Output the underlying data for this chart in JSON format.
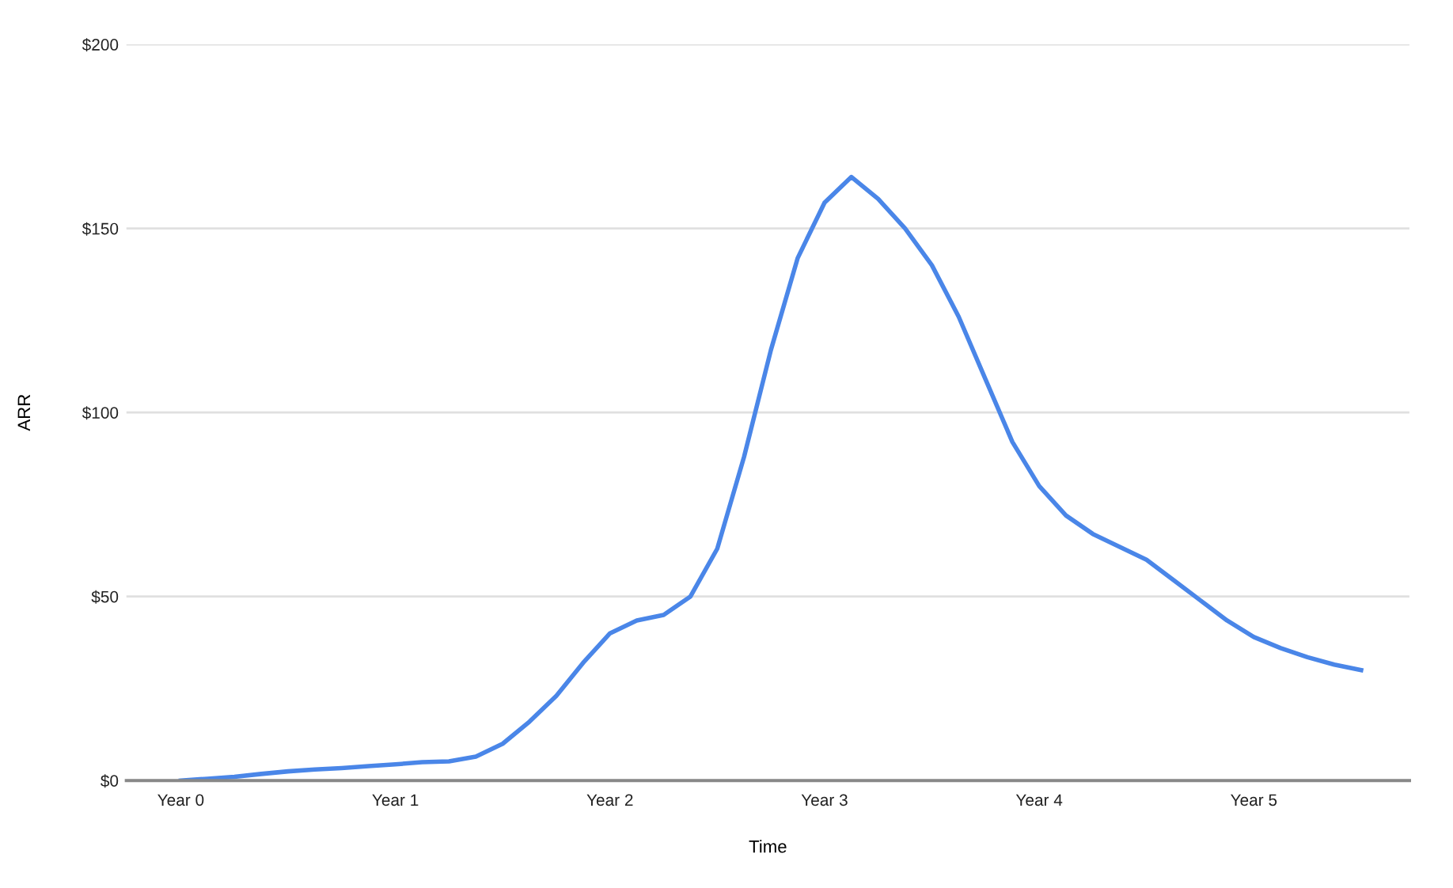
{
  "chart_data": {
    "type": "line",
    "xlabel": "Time",
    "ylabel": "ARR",
    "categories": [
      "Year 0",
      null,
      null,
      null,
      null,
      null,
      null,
      null,
      "Year 1",
      null,
      null,
      null,
      null,
      null,
      null,
      null,
      "Year 2",
      null,
      null,
      null,
      null,
      null,
      null,
      null,
      "Year 3",
      null,
      null,
      null,
      null,
      null,
      null,
      null,
      "Year 4",
      null,
      null,
      null,
      null,
      null,
      null,
      null,
      "Year 5",
      null,
      null,
      null,
      null
    ],
    "series": [
      {
        "color": "#4a86e8",
        "values": [
          0,
          0.5,
          1,
          1.8,
          2.5,
          3,
          3.4,
          3.9,
          4.4,
          5,
          5.2,
          6.5,
          10,
          16,
          23,
          32,
          40,
          43.5,
          45,
          50,
          63,
          88,
          117,
          142,
          157,
          164,
          158,
          150,
          140,
          126,
          109,
          92,
          80,
          72,
          67,
          63.5,
          60,
          54.5,
          49,
          43.5,
          39,
          36,
          33.5,
          31.5,
          30
        ]
      }
    ],
    "ylim": [
      0,
      200
    ],
    "yticks": [
      {
        "value": 0,
        "label": "$0"
      },
      {
        "value": 50,
        "label": "$50"
      },
      {
        "value": 100,
        "label": "$100"
      },
      {
        "value": 150,
        "label": "$150"
      },
      {
        "value": 200,
        "label": "$200"
      }
    ],
    "grid": "y",
    "marker": "none",
    "line_style": "solid",
    "legend": false
  }
}
